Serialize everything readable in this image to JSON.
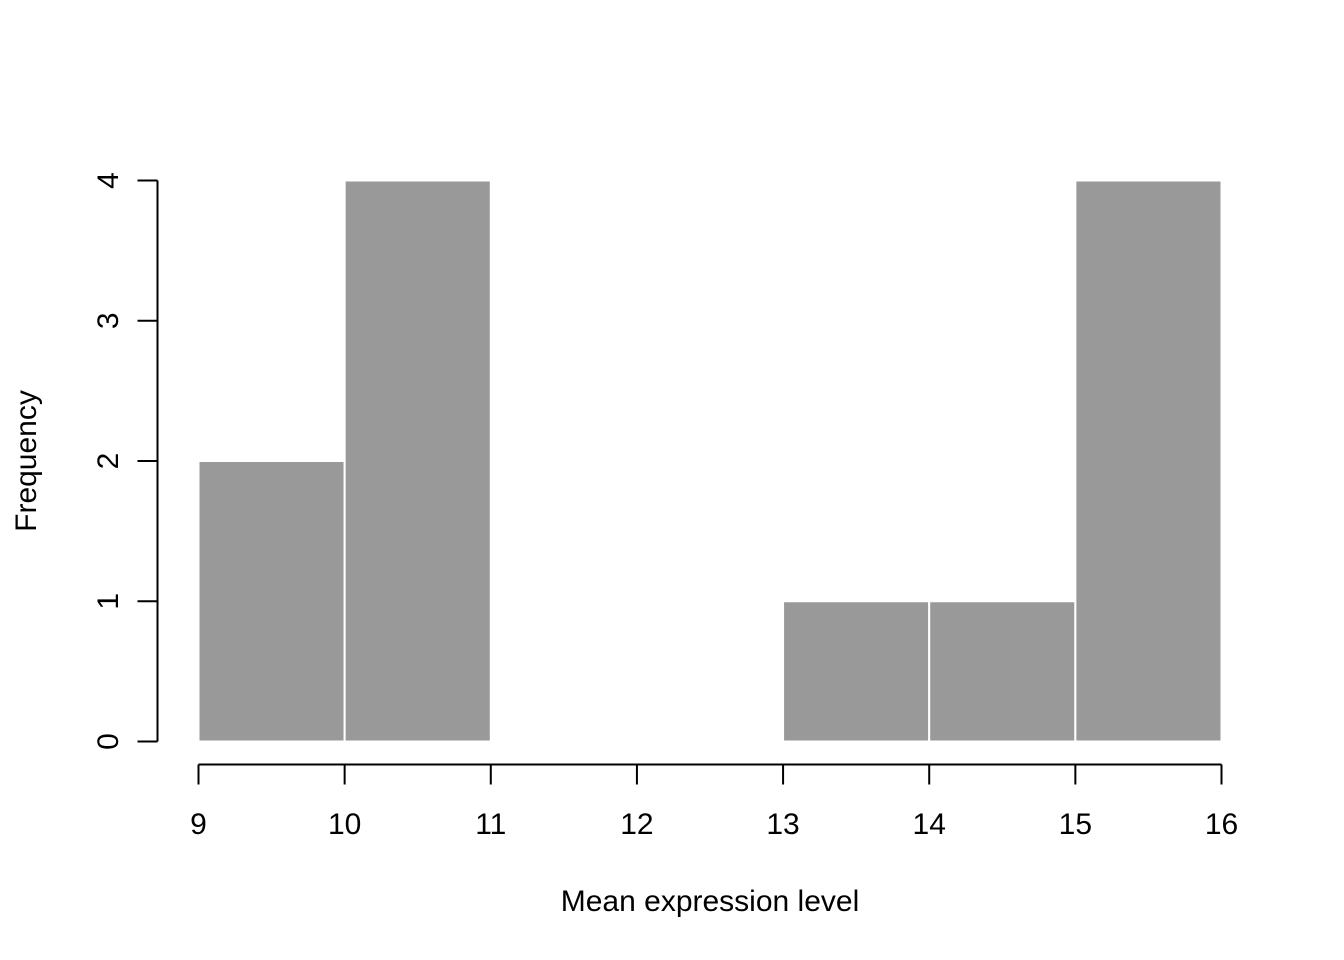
{
  "chart_data": {
    "type": "bar",
    "subtype": "histogram",
    "title": "",
    "xlabel": "Mean expression level",
    "ylabel": "Frequency",
    "bins": [
      {
        "start": 9,
        "end": 10,
        "count": 2
      },
      {
        "start": 10,
        "end": 11,
        "count": 4
      },
      {
        "start": 11,
        "end": 12,
        "count": 0
      },
      {
        "start": 12,
        "end": 13,
        "count": 0
      },
      {
        "start": 13,
        "end": 14,
        "count": 1
      },
      {
        "start": 14,
        "end": 15,
        "count": 1
      },
      {
        "start": 15,
        "end": 16,
        "count": 4
      }
    ],
    "xlim": [
      9,
      16
    ],
    "ylim": [
      0,
      4
    ],
    "xticks": [
      9,
      10,
      11,
      12,
      13,
      14,
      15,
      16
    ],
    "yticks": [
      0,
      1,
      2,
      3,
      4
    ],
    "grid": false,
    "colors": {
      "bar_fill": "#999999",
      "bar_border": "#ffffff",
      "axis": "#000000"
    }
  }
}
